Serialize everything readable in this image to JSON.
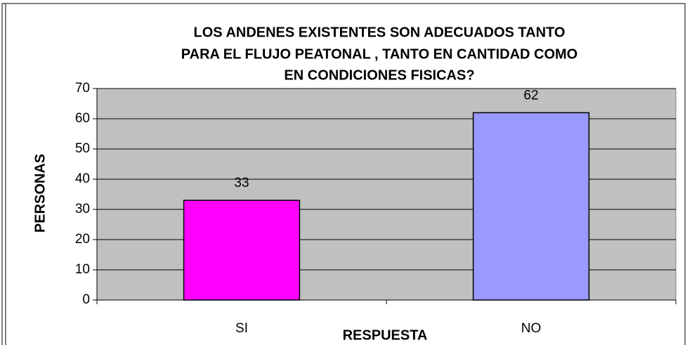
{
  "chart_data": {
    "type": "bar",
    "title": [
      "LOS ANDENES EXISTENTES SON ADECUADOS TANTO",
      "PARA EL FLUJO PEATONAL , TANTO EN CANTIDAD COMO",
      "EN CONDICIONES FISICAS?"
    ],
    "x_label": "RESPUESTA",
    "y_label": "PERSONAS",
    "categories": [
      "SI",
      "NO"
    ],
    "values": [
      33,
      62
    ],
    "colors": [
      "#ff00ff",
      "#9999ff"
    ],
    "ylim": [
      0,
      70
    ],
    "yticks": [
      0,
      10,
      20,
      30,
      40,
      50,
      60,
      70
    ],
    "grid": true
  }
}
